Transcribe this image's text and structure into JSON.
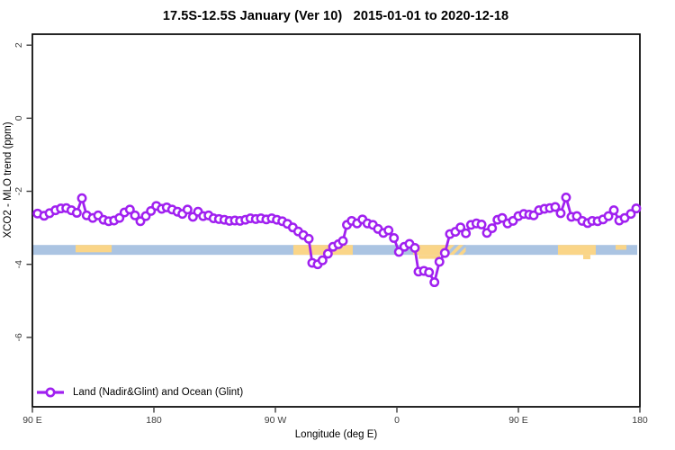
{
  "title": "17.5S-12.5S January (Ver 10)   2015-01-01 to 2020-12-18",
  "legend": {
    "label": "Land (Nadir&Glint) and Ocean (Glint)"
  },
  "axes": {
    "x_label": "Longitude (deg E)",
    "y_label": "XCO2 - MLO trend (ppm)",
    "x_ticks": [
      {
        "deg": 0,
        "label": "90 E"
      },
      {
        "deg": 90,
        "label": "180"
      },
      {
        "deg": 180,
        "label": "90 W"
      },
      {
        "deg": 270,
        "label": "0"
      },
      {
        "deg": 360,
        "label": "90 E"
      },
      {
        "deg": 450,
        "label": "180"
      }
    ],
    "y_ticks": [
      {
        "ppm": 2,
        "label": "2"
      },
      {
        "ppm": 0,
        "label": "0"
      },
      {
        "ppm": -2,
        "label": "-2"
      },
      {
        "ppm": -4,
        "label": "-4"
      },
      {
        "ppm": -6,
        "label": "-6"
      }
    ]
  },
  "colors": {
    "series": "#A020F0",
    "marker_fill": "#ffffff",
    "band_blue": "#ABC4E2",
    "band_orange": "#FAD588",
    "axis": "#000000",
    "tick_text": "#3d3d3d"
  },
  "chart_data": {
    "type": "line",
    "title": "17.5S-12.5S January (Ver 10)   2015-01-01 to 2020-12-18",
    "xlabel": "Longitude (deg E)",
    "ylabel": "XCO2 - MLO trend (ppm)",
    "x_range_deg": [
      0,
      450
    ],
    "y_range_ppm": [
      -7.9,
      2.3
    ],
    "x_tick_interval_deg": 90,
    "grid": false,
    "legend_position": "bottom-left",
    "marker": "open-circle",
    "background_band_blue": {
      "from_deg": 0,
      "to_deg": 448,
      "top_ppm": -3.47,
      "bottom_ppm": -3.74
    },
    "background_bands_orange": [
      {
        "from_deg": 32,
        "to_deg": 58.7,
        "top_ppm": -3.47,
        "bottom_ppm": -3.67,
        "hatched": false
      },
      {
        "from_deg": 193.3,
        "to_deg": 237.3,
        "top_ppm": -3.47,
        "bottom_ppm": -3.74,
        "hatched": false
      },
      {
        "from_deg": 282,
        "to_deg": 306,
        "top_ppm": -3.47,
        "bottom_ppm": -3.74,
        "hatched": false
      },
      {
        "from_deg": 286,
        "to_deg": 302,
        "top_ppm": -3.74,
        "bottom_ppm": -3.85,
        "hatched": false
      },
      {
        "from_deg": 306,
        "to_deg": 321,
        "top_ppm": -3.47,
        "bottom_ppm": -3.74,
        "hatched": true
      },
      {
        "from_deg": 389.3,
        "to_deg": 417.3,
        "top_ppm": -3.47,
        "bottom_ppm": -3.74,
        "hatched": false
      },
      {
        "from_deg": 408,
        "to_deg": 413.3,
        "top_ppm": -3.74,
        "bottom_ppm": -3.86,
        "hatched": false
      },
      {
        "from_deg": 432,
        "to_deg": 440,
        "top_ppm": -3.47,
        "bottom_ppm": -3.6,
        "hatched": false
      }
    ],
    "series": [
      {
        "name": "Land (Nadir&Glint) and Ocean (Glint)",
        "points": [
          [
            3.8,
            -2.61
          ],
          [
            8.7,
            -2.67
          ],
          [
            12.7,
            -2.6
          ],
          [
            17.1,
            -2.52
          ],
          [
            21.1,
            -2.47
          ],
          [
            25.1,
            -2.46
          ],
          [
            28.9,
            -2.52
          ],
          [
            32.9,
            -2.59
          ],
          [
            36.7,
            -2.19
          ],
          [
            40.2,
            -2.66
          ],
          [
            44.7,
            -2.73
          ],
          [
            48.7,
            -2.66
          ],
          [
            52.7,
            -2.78
          ],
          [
            56.5,
            -2.82
          ],
          [
            60.5,
            -2.8
          ],
          [
            64.5,
            -2.73
          ],
          [
            68.2,
            -2.58
          ],
          [
            72.2,
            -2.5
          ],
          [
            76,
            -2.66
          ],
          [
            80,
            -2.82
          ],
          [
            84,
            -2.68
          ],
          [
            87.8,
            -2.54
          ],
          [
            91.8,
            -2.4
          ],
          [
            95.8,
            -2.48
          ],
          [
            99.5,
            -2.44
          ],
          [
            103.5,
            -2.5
          ],
          [
            107.5,
            -2.56
          ],
          [
            111.1,
            -2.62
          ],
          [
            114.9,
            -2.5
          ],
          [
            118.9,
            -2.7
          ],
          [
            122.7,
            -2.56
          ],
          [
            126.5,
            -2.68
          ],
          [
            130.5,
            -2.66
          ],
          [
            134.2,
            -2.74
          ],
          [
            138.2,
            -2.76
          ],
          [
            142.2,
            -2.78
          ],
          [
            146,
            -2.81
          ],
          [
            150,
            -2.8
          ],
          [
            153.8,
            -2.81
          ],
          [
            157.8,
            -2.78
          ],
          [
            161.5,
            -2.74
          ],
          [
            165.5,
            -2.76
          ],
          [
            169.3,
            -2.74
          ],
          [
            173.3,
            -2.77
          ],
          [
            177.3,
            -2.74
          ],
          [
            181.1,
            -2.78
          ],
          [
            185.1,
            -2.82
          ],
          [
            188.9,
            -2.89
          ],
          [
            192.9,
            -2.99
          ],
          [
            196.9,
            -3.1
          ],
          [
            200.7,
            -3.2
          ],
          [
            204.7,
            -3.3
          ],
          [
            207.3,
            -3.96
          ],
          [
            211.3,
            -4.0
          ],
          [
            214.9,
            -3.89
          ],
          [
            218.9,
            -3.71
          ],
          [
            222.7,
            -3.52
          ],
          [
            226.7,
            -3.45
          ],
          [
            230,
            -3.36
          ],
          [
            233,
            -2.92
          ],
          [
            236.5,
            -2.81
          ],
          [
            240.5,
            -2.88
          ],
          [
            244.5,
            -2.77
          ],
          [
            248.2,
            -2.88
          ],
          [
            252.2,
            -2.92
          ],
          [
            256,
            -3.03
          ],
          [
            260,
            -3.14
          ],
          [
            263.8,
            -3.07
          ],
          [
            267.8,
            -3.28
          ],
          [
            271.5,
            -3.66
          ],
          [
            275.5,
            -3.52
          ],
          [
            279.3,
            -3.44
          ],
          [
            283.3,
            -3.55
          ],
          [
            286,
            -4.2
          ],
          [
            290,
            -4.18
          ],
          [
            293.8,
            -4.22
          ],
          [
            297.8,
            -4.49
          ],
          [
            301.5,
            -3.93
          ],
          [
            305.5,
            -3.69
          ],
          [
            309.3,
            -3.17
          ],
          [
            313.3,
            -3.11
          ],
          [
            317.1,
            -2.99
          ],
          [
            321.1,
            -3.15
          ],
          [
            324.9,
            -2.92
          ],
          [
            328.9,
            -2.88
          ],
          [
            332.7,
            -2.91
          ],
          [
            336.7,
            -3.14
          ],
          [
            340.5,
            -3.01
          ],
          [
            344.5,
            -2.78
          ],
          [
            348,
            -2.73
          ],
          [
            352,
            -2.88
          ],
          [
            356,
            -2.81
          ],
          [
            360,
            -2.68
          ],
          [
            364,
            -2.62
          ],
          [
            368,
            -2.64
          ],
          [
            371.3,
            -2.66
          ],
          [
            375.3,
            -2.52
          ],
          [
            379.3,
            -2.48
          ],
          [
            383.3,
            -2.46
          ],
          [
            387.3,
            -2.43
          ],
          [
            391.3,
            -2.6
          ],
          [
            395.3,
            -2.17
          ],
          [
            399.3,
            -2.7
          ],
          [
            403.3,
            -2.68
          ],
          [
            407.3,
            -2.81
          ],
          [
            411.3,
            -2.87
          ],
          [
            414.7,
            -2.81
          ],
          [
            418.7,
            -2.82
          ],
          [
            422.7,
            -2.77
          ],
          [
            426.7,
            -2.68
          ],
          [
            430.7,
            -2.52
          ],
          [
            434.7,
            -2.8
          ],
          [
            438.7,
            -2.73
          ],
          [
            443.3,
            -2.62
          ],
          [
            447.3,
            -2.47
          ]
        ]
      }
    ]
  }
}
